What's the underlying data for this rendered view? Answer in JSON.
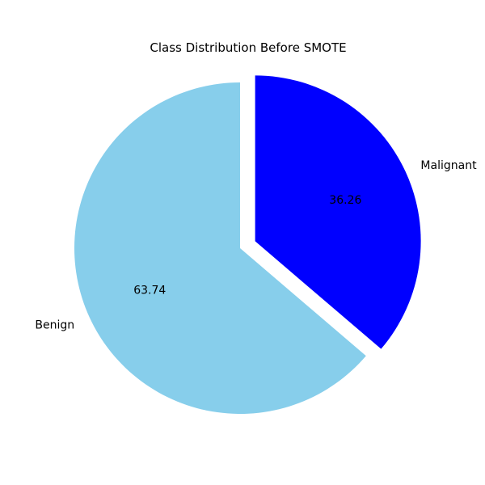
{
  "chart_data": {
    "type": "pie",
    "title": "Class Distribution Before SMOTE",
    "slices": [
      {
        "label": "Benign",
        "value": 63.74,
        "pct_label": "63.74",
        "color": "#87CEEB",
        "exploded": false
      },
      {
        "label": "Malignant",
        "value": 36.26,
        "pct_label": "36.26",
        "color": "#0000FF",
        "exploded": true
      }
    ],
    "start_angle_deg": 90,
    "direction": "counterclockwise"
  }
}
